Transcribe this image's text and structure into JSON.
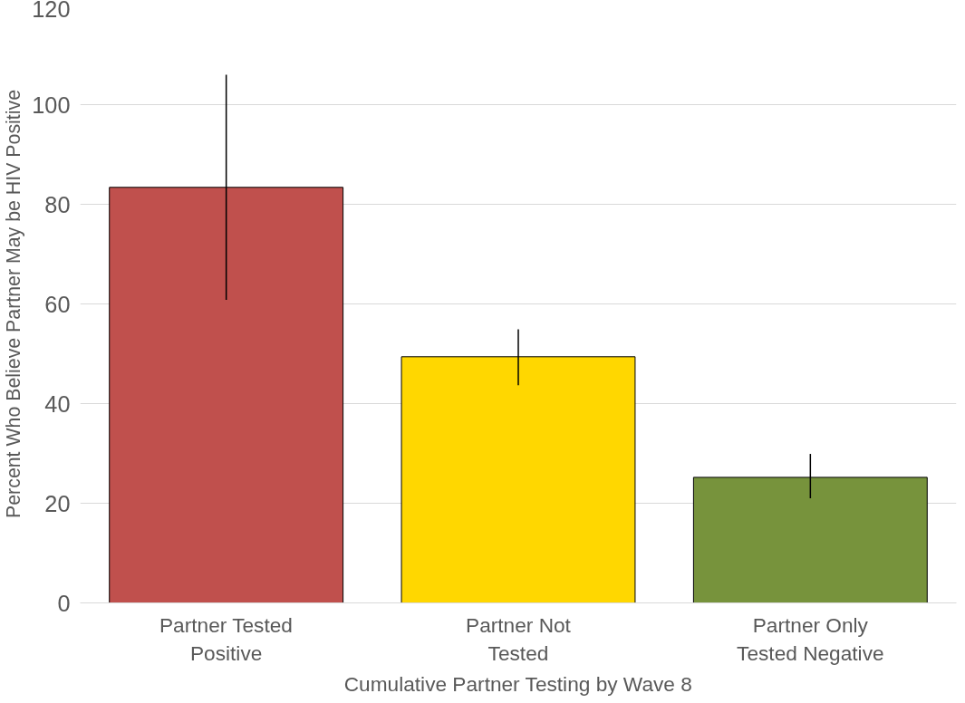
{
  "chart_data": {
    "type": "bar",
    "xlabel": "Cumulative Partner Testing by Wave 8",
    "ylabel": "Percent Who Believe Partner May be HIV Positive",
    "categories": [
      "Partner Tested\nPositive",
      "Partner Not\nTested",
      "Partner Only\nTested Negative"
    ],
    "values": [
      83.4,
      49.4,
      25.2
    ],
    "colors": [
      "#c0504d",
      "#ffd700",
      "#77933c"
    ],
    "errors": [
      [
        60.8,
        106
      ],
      [
        43.7,
        54.9
      ],
      [
        21,
        29.9
      ]
    ],
    "ylim": [
      0,
      120
    ],
    "yticks": [
      0,
      20,
      40,
      60,
      80,
      100,
      120
    ],
    "grid": "y"
  }
}
